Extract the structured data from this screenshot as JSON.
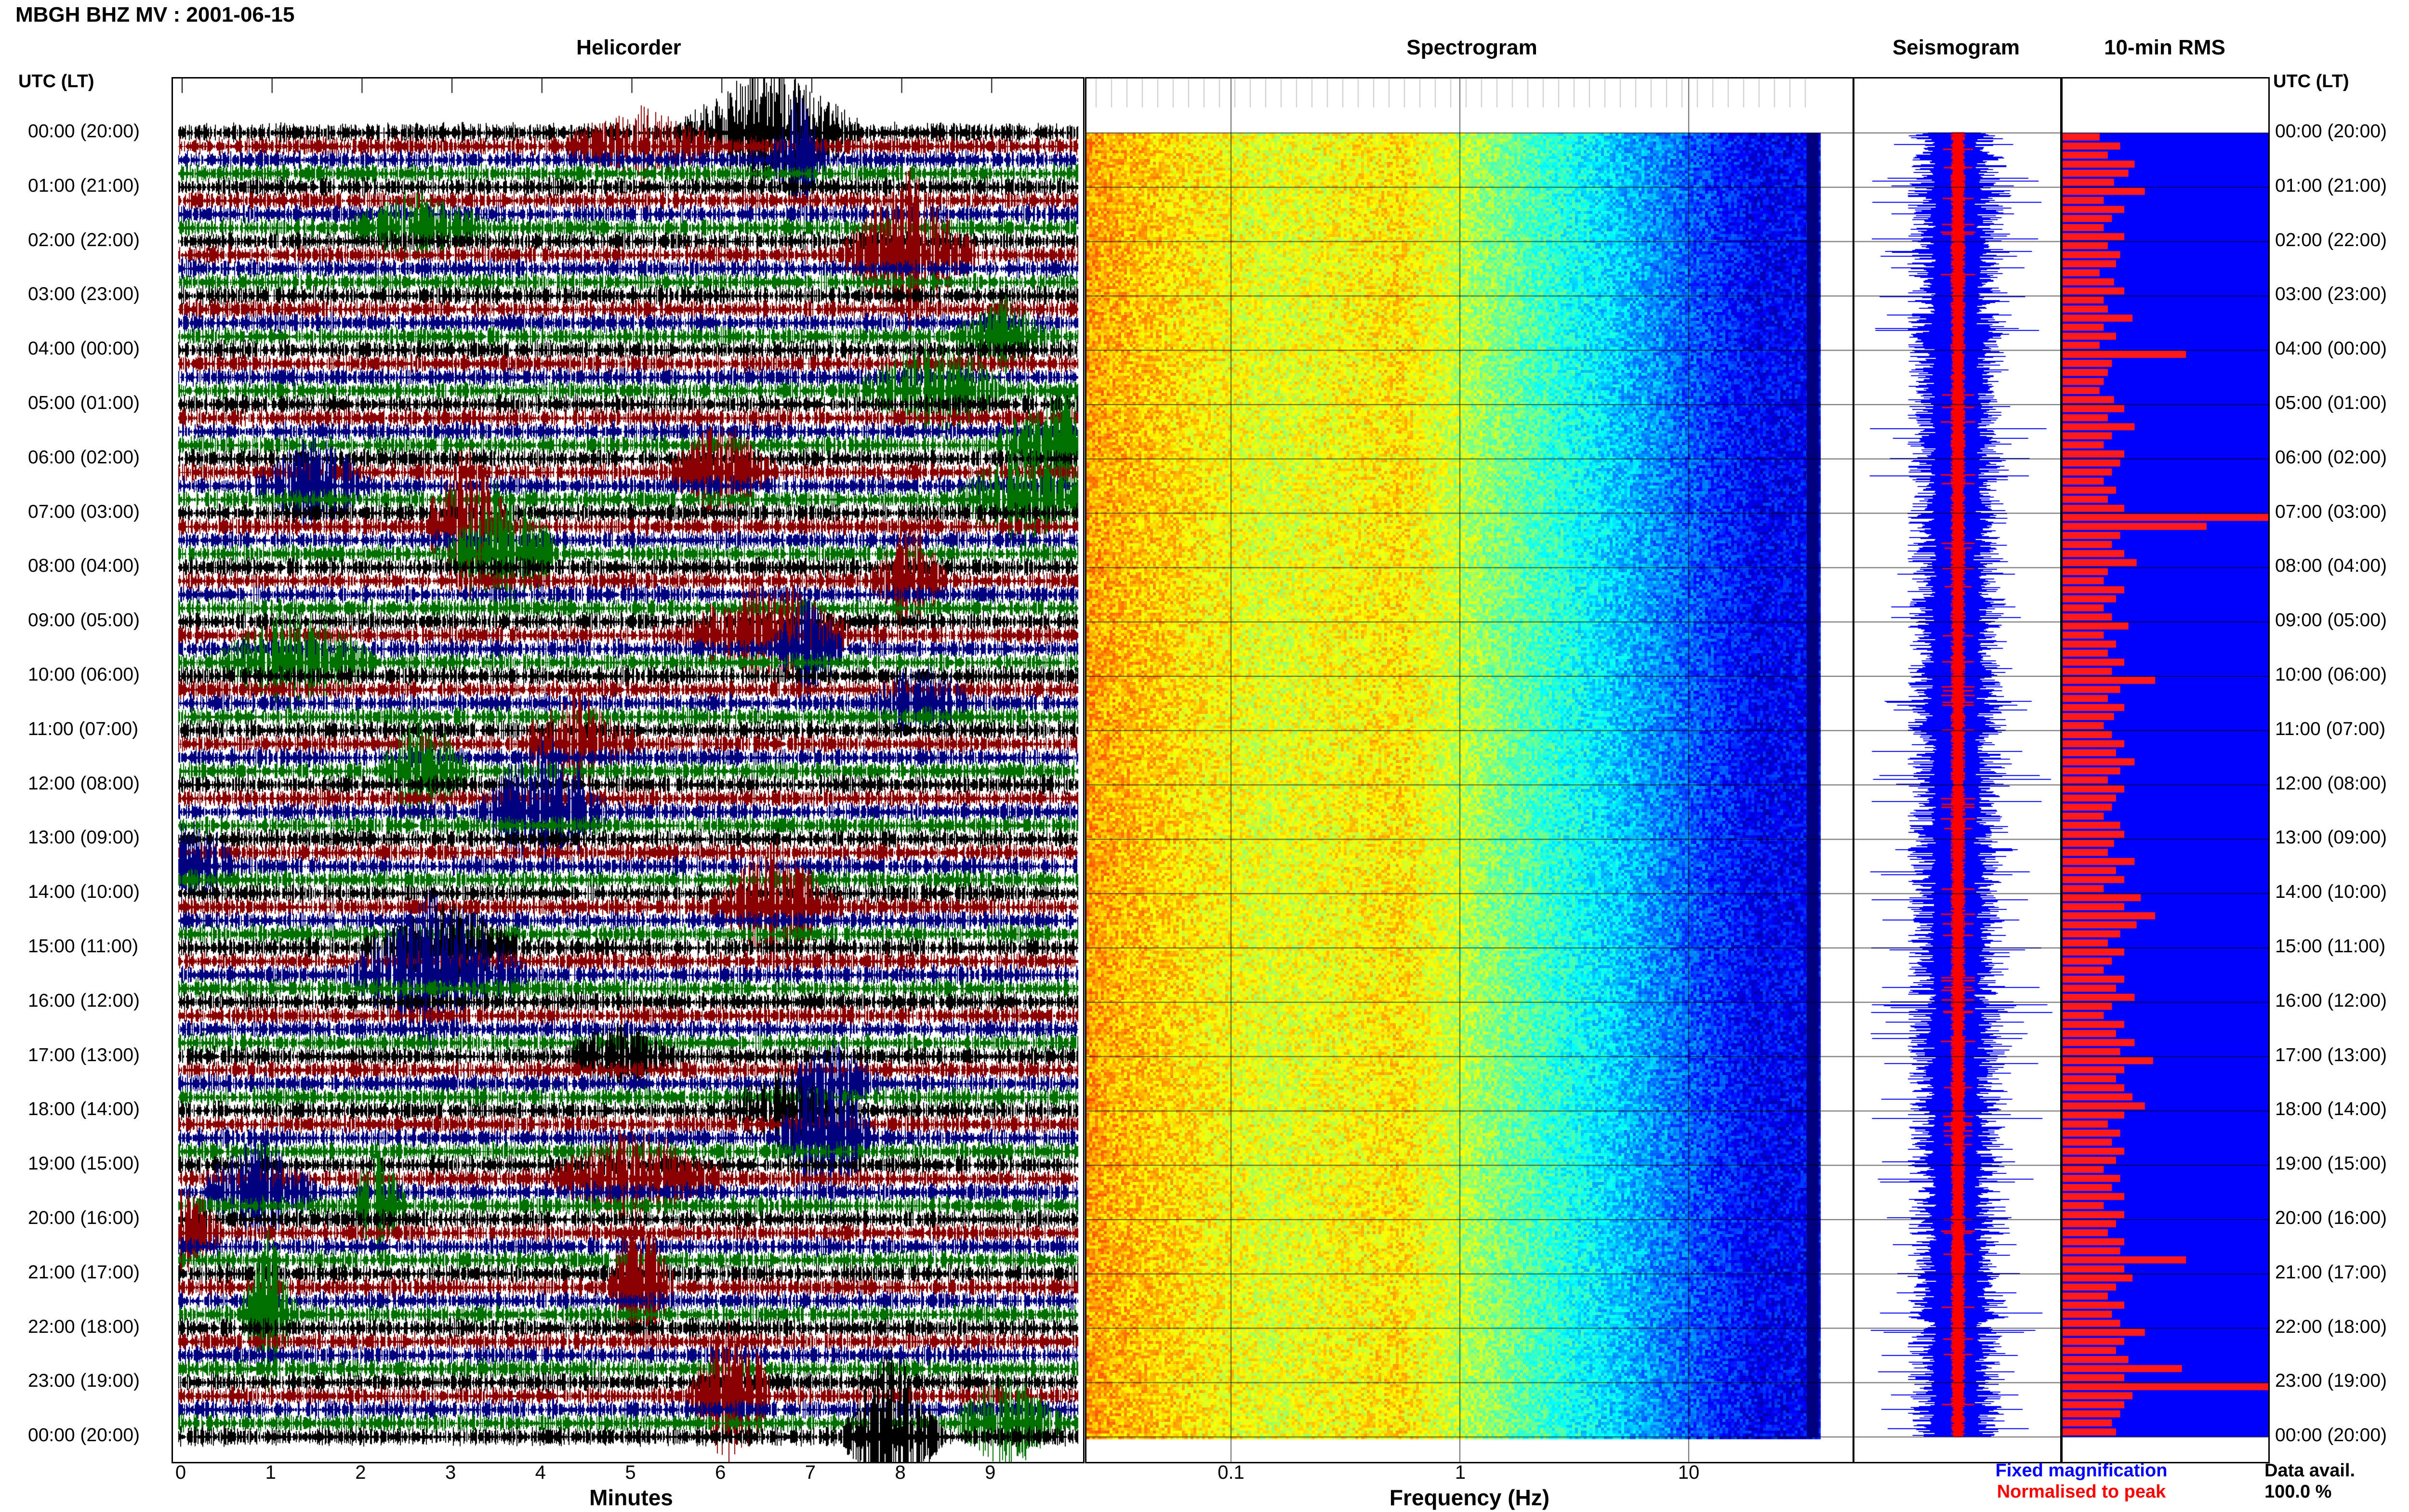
{
  "header": {
    "title": "MBGH BHZ MV : 2001-06-15"
  },
  "panels": {
    "helicorder": "Helicorder",
    "spectrogram": "Spectrogram",
    "seismogram": "Seismogram",
    "rms": "10-min RMS"
  },
  "axis_labels": {
    "time_left": "UTC (LT)",
    "time_right": "UTC (LT)",
    "minutes": "Minutes",
    "frequency": "Frequency (Hz)"
  },
  "legend": {
    "fixed": "Fixed magnification",
    "normalised": "Normalised to peak",
    "avail_label": "Data avail.",
    "avail_value": "100.0 %"
  },
  "colors": {
    "black": "#000000",
    "red": "#8b0000",
    "blue": "#000080",
    "green": "#007000",
    "seis_blue": "#0000ff",
    "seis_red": "#ff0000",
    "rms_bg": "#0000ff",
    "rms_bar": "#ff1a1a"
  },
  "chart_data": {
    "type": "heatmap",
    "time_ticks": [
      "00:00 (20:00)",
      "01:00 (21:00)",
      "02:00 (22:00)",
      "03:00 (23:00)",
      "04:00 (00:00)",
      "05:00 (01:00)",
      "06:00 (02:00)",
      "07:00 (03:00)",
      "08:00 (04:00)",
      "09:00 (05:00)",
      "10:00 (06:00)",
      "11:00 (07:00)",
      "12:00 (08:00)",
      "13:00 (09:00)",
      "14:00 (10:00)",
      "15:00 (11:00)",
      "16:00 (12:00)",
      "17:00 (13:00)",
      "18:00 (14:00)",
      "19:00 (15:00)",
      "20:00 (16:00)",
      "21:00 (17:00)",
      "22:00 (18:00)",
      "23:00 (19:00)",
      "00:00 (20:00)"
    ],
    "minute_ticks": [
      "0",
      "1",
      "2",
      "3",
      "4",
      "5",
      "6",
      "7",
      "8",
      "9"
    ],
    "frequency_ticks": [
      "0.1",
      "1",
      "10"
    ],
    "rms_values": [
      0.18,
      0.28,
      0.22,
      0.35,
      0.32,
      0.25,
      0.4,
      0.2,
      0.3,
      0.24,
      0.2,
      0.3,
      0.22,
      0.28,
      0.26,
      0.18,
      0.25,
      0.3,
      0.2,
      0.22,
      0.34,
      0.2,
      0.26,
      0.18,
      0.6,
      0.24,
      0.22,
      0.2,
      0.18,
      0.25,
      0.3,
      0.22,
      0.35,
      0.24,
      0.2,
      0.3,
      0.28,
      0.24,
      0.2,
      0.26,
      0.22,
      0.3,
      1.0,
      0.7,
      0.28,
      0.24,
      0.3,
      0.36,
      0.22,
      0.2,
      0.3,
      0.26,
      0.2,
      0.24,
      0.32,
      0.2,
      0.26,
      0.22,
      0.3,
      0.24,
      0.45,
      0.28,
      0.22,
      0.3,
      0.25,
      0.2,
      0.24,
      0.3,
      0.26,
      0.35,
      0.28,
      0.22,
      0.3,
      0.26,
      0.24,
      0.2,
      0.28,
      0.3,
      0.25,
      0.22,
      0.35,
      0.26,
      0.3,
      0.2,
      0.38,
      0.3,
      0.45,
      0.36,
      0.28,
      0.22,
      0.3,
      0.24,
      0.2,
      0.3,
      0.26,
      0.35,
      0.24,
      0.2,
      0.3,
      0.26,
      0.35,
      0.28,
      0.44,
      0.3,
      0.26,
      0.3,
      0.34,
      0.4,
      0.3,
      0.22,
      0.28,
      0.24,
      0.3,
      0.26,
      0.2,
      0.28,
      0.24,
      0.3,
      0.2,
      0.3,
      0.26,
      0.22,
      0.3,
      0.28,
      0.6,
      0.3,
      0.34,
      0.26,
      0.22,
      0.3,
      0.24,
      0.28,
      0.4,
      0.3,
      0.26,
      0.32,
      0.58,
      0.3,
      1.05,
      0.34,
      0.3,
      0.28,
      0.24,
      0.26
    ]
  }
}
